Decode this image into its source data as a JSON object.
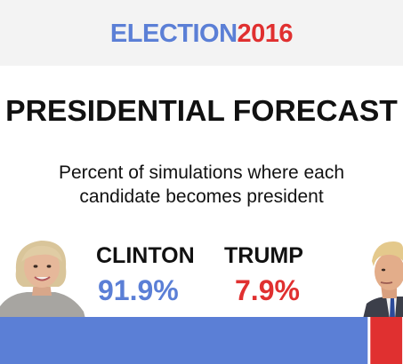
{
  "banner": {
    "word": "ELECTION",
    "year": "2016"
  },
  "headline": "PRESIDENTIAL FORECAST",
  "subhead": "Percent of simulations where each candidate becomes president",
  "candidates": [
    {
      "name": "CLINTON",
      "percent_label": "91.9%",
      "color": "#5b7fd6",
      "portrait": "clinton-portrait"
    },
    {
      "name": "TRUMP",
      "percent_label": "7.9%",
      "color": "#e03030",
      "portrait": "trump-portrait"
    }
  ],
  "chart_data": {
    "type": "bar",
    "orientation": "horizontal-stacked",
    "title": "PRESIDENTIAL FORECAST",
    "subtitle": "Percent of simulations where each candidate becomes president",
    "categories": [
      "CLINTON",
      "TRUMP"
    ],
    "values": [
      91.9,
      7.9
    ],
    "colors": [
      "#5b7fd6",
      "#e03030"
    ],
    "unit": "%",
    "xlim": [
      0,
      100
    ],
    "grid": false,
    "legend": "none"
  }
}
